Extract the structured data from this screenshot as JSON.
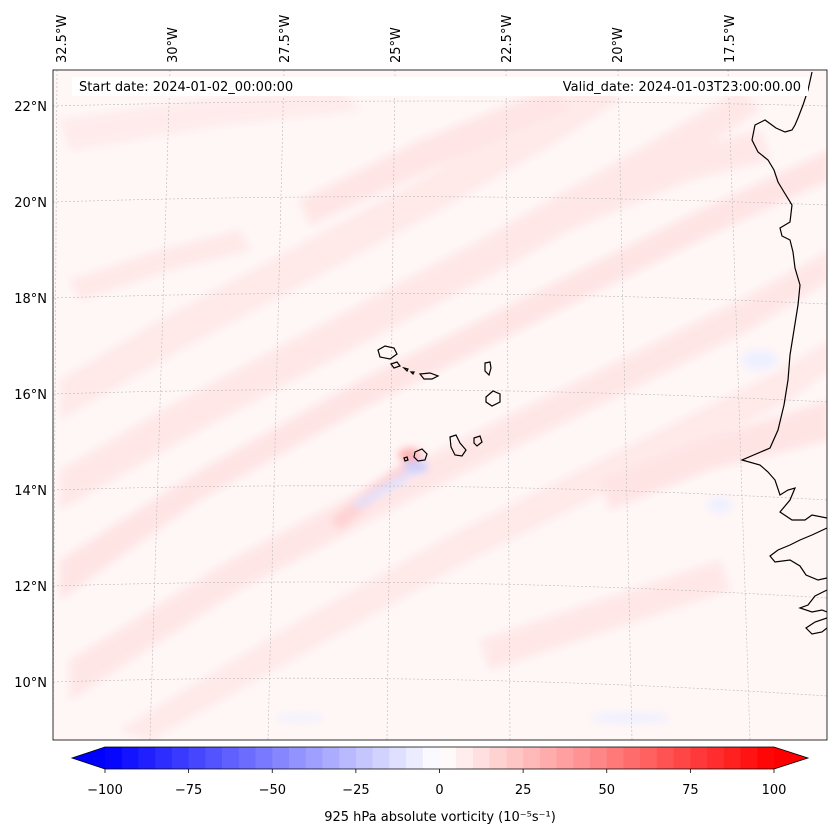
{
  "header": {
    "start_date": "Start date: 2024-01-02_00:00:00",
    "valid_date": "Valid_date: 2024-01-03T23:00:00.00"
  },
  "map": {
    "longitude_labels": [
      "32.5°W",
      "30°W",
      "27.5°W",
      "25°W",
      "22.5°W",
      "20°W",
      "17.5°W"
    ],
    "latitude_labels": [
      "22°N",
      "20°N",
      "18°N",
      "16°N",
      "14°N",
      "12°N",
      "10°N"
    ],
    "field_colors": {
      "background": "#fff6f6",
      "light_positive": "#ffe5e5",
      "moderate_positive": "#ffc9c9",
      "light_negative": "#eef0ff",
      "coastline": "#000000",
      "gridline": "#b0b0b0"
    }
  },
  "colorbar": {
    "label": "925 hPa absolute vorticity (10⁻⁵s⁻¹)",
    "ticks": [
      "−100",
      "−75",
      "−50",
      "−25",
      "0",
      "25",
      "50",
      "75",
      "100"
    ],
    "min": -100,
    "max": 100,
    "colormap": "bwr",
    "low_color": "#0000ff",
    "mid_color": "#ffffff",
    "high_color": "#ff0000"
  }
}
